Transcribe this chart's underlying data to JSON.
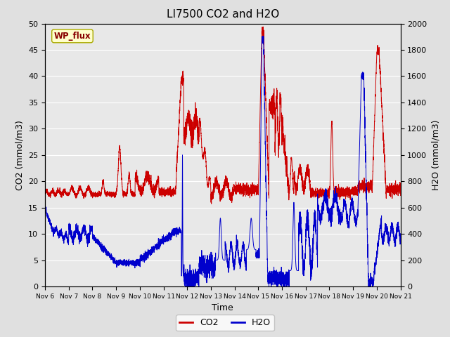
{
  "title": "LI7500 CO2 and H2O",
  "xlabel": "Time",
  "ylabel_left": "CO2 (mmol/m3)",
  "ylabel_right": "H2O (mmol/m3)",
  "ylim_left": [
    0,
    50
  ],
  "ylim_right": [
    0,
    2000
  ],
  "x_tick_labels": [
    "Nov 6",
    "Nov 7",
    "Nov 8",
    "Nov 9",
    "Nov 10",
    "Nov 11",
    "Nov 12",
    "Nov 13",
    "Nov 14",
    "Nov 15",
    "Nov 16",
    "Nov 17",
    "Nov 18",
    "Nov 19",
    "Nov 20",
    "Nov 21"
  ],
  "co2_color": "#cc0000",
  "h2o_color": "#0000cc",
  "bg_color": "#e0e0e0",
  "plot_bg_color": "#e8e8e8",
  "grid_color": "#ffffff",
  "annotation_text": "WP_flux",
  "annotation_bg": "#ffffcc",
  "annotation_border": "#aaaa00",
  "legend_entries": [
    "CO2",
    "H2O"
  ],
  "title_fontsize": 11,
  "axis_fontsize": 9,
  "tick_fontsize": 8,
  "legend_fontsize": 9
}
